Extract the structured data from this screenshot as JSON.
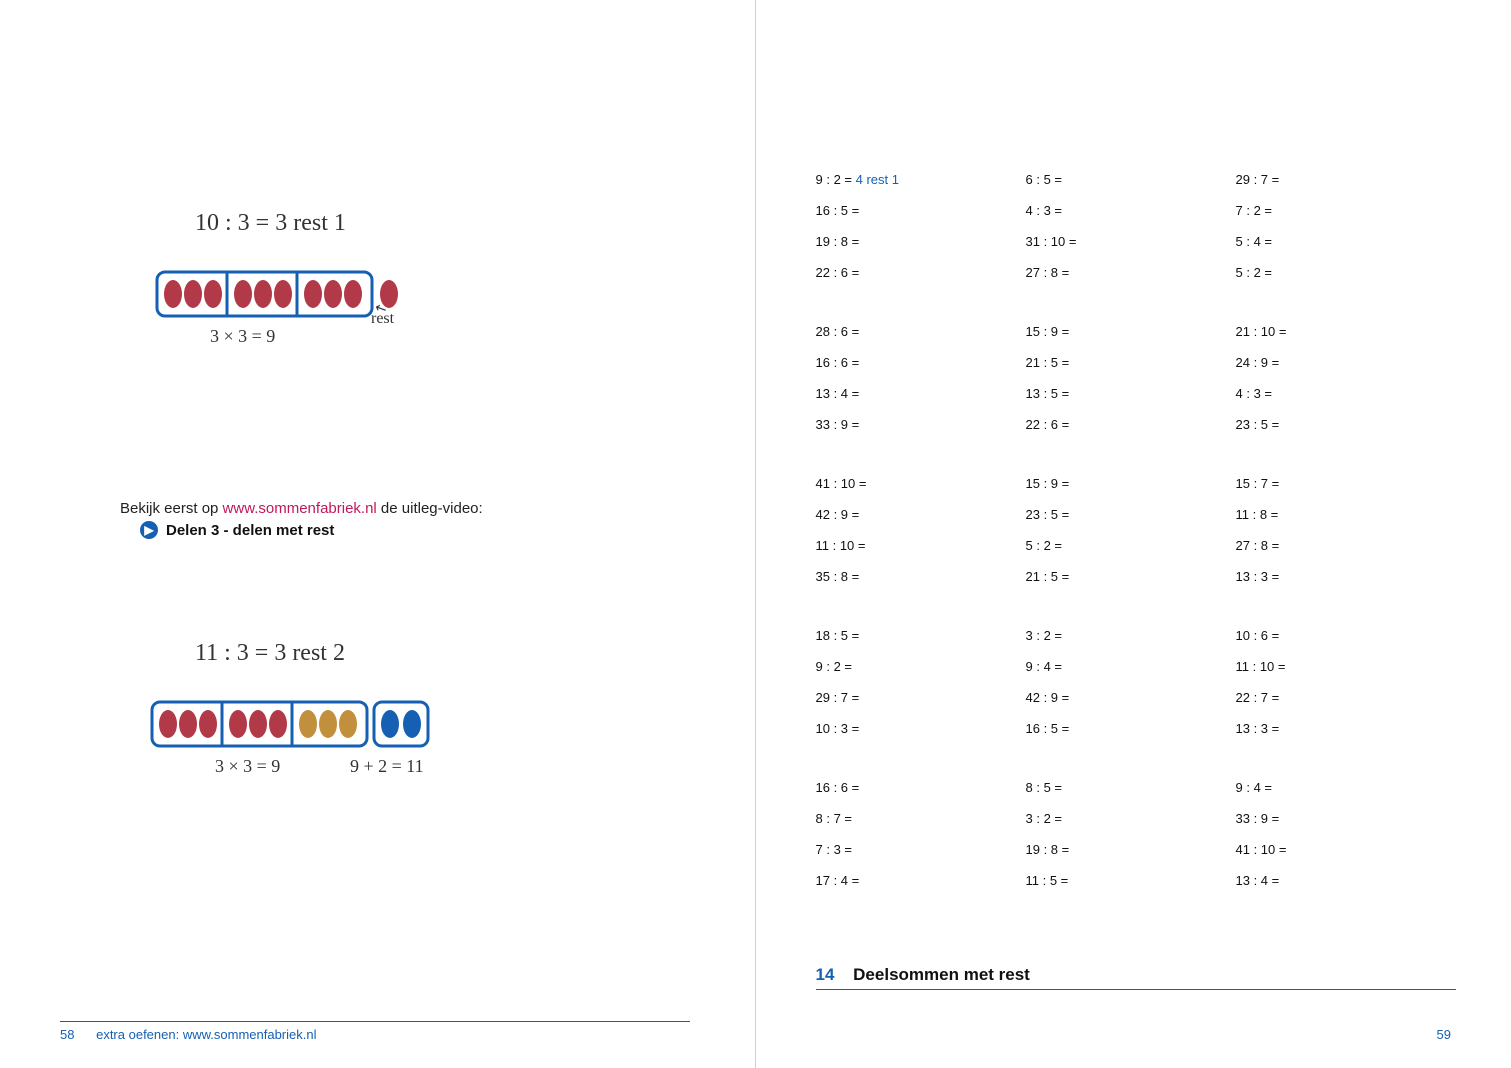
{
  "left_page": {
    "example1": {
      "equation": "10 : 3 = 3 rest 1",
      "product": "3 × 3 = 9",
      "rest_label": "rest",
      "groups": [
        3,
        3,
        3
      ],
      "rest_ovals": 1,
      "oval_fill": "#b23a48",
      "box_stroke": "#1560b3"
    },
    "instruction_line1_prefix": "Bekijk eerst op ",
    "instruction_link": "www.sommenfabriek.nl",
    "instruction_line1_suffix": " de uitleg-video:",
    "instruction_bullet": "Delen 3 - delen met rest",
    "example2": {
      "equation": "11 : 3 = 3 rest 2",
      "product": "3 × 3 = 9",
      "sum": "9 + 2 = 11",
      "groups": [
        3,
        3,
        3
      ],
      "rest_ovals": 2,
      "oval_fill_groups": [
        "#b23a48",
        "#b23a48",
        "#c28f3d"
      ],
      "rest_oval_fill": "#1560b3",
      "box_stroke": "#1560b3"
    },
    "footer_pagenum": "58",
    "footer_text": "extra oefenen: www.sommenfabriek.nl"
  },
  "right_page": {
    "section_number": "14",
    "section_title": "Deelsommen met rest",
    "first_problem_question": "9 : 2 =",
    "first_problem_answer": " 4 rest 1",
    "blocks": [
      {
        "col1": [
          "9 : 2 =",
          "16 : 5 =",
          "19 : 8 =",
          "22 : 6 ="
        ],
        "col2": [
          "6 : 5 =",
          "4 : 3 =",
          "31 : 10 =",
          "27 : 8 ="
        ],
        "col3": [
          "29 : 7 =",
          "7 : 2 =",
          "5 : 4 =",
          "5 : 2 ="
        ]
      },
      {
        "col1": [
          "28 : 6 =",
          "16 : 6 =",
          "13 : 4 =",
          "33 : 9 ="
        ],
        "col2": [
          "15 : 9 =",
          "21 : 5 =",
          "13 : 5 =",
          "22 : 6 ="
        ],
        "col3": [
          "21 : 10 =",
          "24 : 9 =",
          "4 : 3 =",
          "23 : 5 ="
        ]
      },
      {
        "col1": [
          "41 : 10 =",
          "42 : 9 =",
          "11 : 10 =",
          "35 : 8 ="
        ],
        "col2": [
          "15 : 9 =",
          "23 : 5 =",
          "5 : 2 =",
          "21 : 5 ="
        ],
        "col3": [
          "15 : 7 =",
          "11 : 8 =",
          "27 : 8 =",
          "13 : 3 ="
        ]
      },
      {
        "col1": [
          "18 : 5 =",
          "9 : 2 =",
          "29 : 7 =",
          "10 : 3 ="
        ],
        "col2": [
          "3 : 2 =",
          "9 : 4 =",
          "42 : 9 =",
          "16 : 5 ="
        ],
        "col3": [
          "10 : 6 =",
          "11 : 10 =",
          "22 : 7 =",
          "13 : 3 ="
        ]
      },
      {
        "col1": [
          "16 : 6 =",
          "8 : 7 =",
          "7 : 3 =",
          "17 : 4 ="
        ],
        "col2": [
          "8 : 5 =",
          "3 : 2 =",
          "19 : 8 =",
          "11 : 5 ="
        ],
        "col3": [
          "9 : 4 =",
          "33 : 9 =",
          "41 : 10 =",
          "13 : 4 ="
        ]
      }
    ],
    "footer_pagenum": "59"
  },
  "style": {
    "accent_color": "#1560b3",
    "handwriting_color": "#333",
    "text_color": "#111",
    "background_color": "#ffffff",
    "instruction_font_size": 15,
    "problems_font_size": 13,
    "handwriting_font_size": 24
  }
}
